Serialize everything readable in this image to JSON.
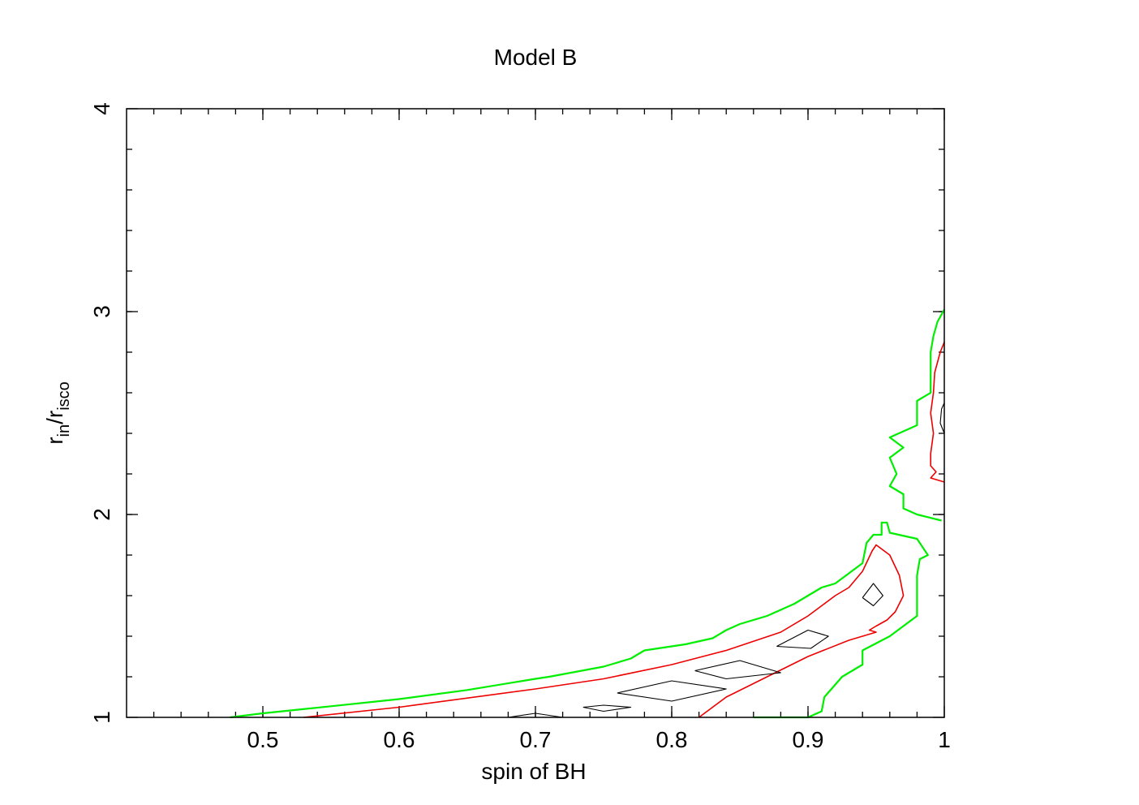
{
  "chart_data": {
    "type": "contour",
    "title": "Model B",
    "xlabel": "spin of BH",
    "ylabel_main": "r",
    "ylabel_sub1": "in",
    "ylabel_slash": "/r",
    "ylabel_sub2": "isco",
    "xlim": [
      0.4,
      1.0
    ],
    "ylim": [
      1,
      4
    ],
    "x_ticks": [
      {
        "value": 0.5,
        "label": "0.5"
      },
      {
        "value": 0.6,
        "label": "0.6"
      },
      {
        "value": 0.7,
        "label": "0.7"
      },
      {
        "value": 0.8,
        "label": "0.8"
      },
      {
        "value": 0.9,
        "label": "0.9"
      },
      {
        "value": 1.0,
        "label": "1"
      }
    ],
    "y_ticks": [
      {
        "value": 1,
        "label": "1"
      },
      {
        "value": 2,
        "label": "2"
      },
      {
        "value": 3,
        "label": "3"
      },
      {
        "value": 4,
        "label": "4"
      }
    ],
    "x_minor_step": 0.02,
    "y_minor_step": 0.2,
    "grid": false,
    "contours": [
      {
        "level": "outer",
        "color": "#00ee00",
        "paths": [
          [
            [
              0.476,
              1.0
            ],
            [
              0.5,
              1.02
            ],
            [
              0.55,
              1.055
            ],
            [
              0.6,
              1.09
            ],
            [
              0.65,
              1.135
            ],
            [
              0.7,
              1.19
            ],
            [
              0.71,
              1.2
            ],
            [
              0.75,
              1.25
            ],
            [
              0.77,
              1.29
            ],
            [
              0.78,
              1.33
            ],
            [
              0.8,
              1.35
            ],
            [
              0.81,
              1.36
            ],
            [
              0.83,
              1.39
            ],
            [
              0.84,
              1.43
            ],
            [
              0.85,
              1.46
            ],
            [
              0.87,
              1.5
            ],
            [
              0.88,
              1.53
            ],
            [
              0.89,
              1.56
            ],
            [
              0.9,
              1.6
            ],
            [
              0.91,
              1.64
            ],
            [
              0.92,
              1.66
            ],
            [
              0.94,
              1.76
            ],
            [
              0.943,
              1.86
            ],
            [
              0.948,
              1.9
            ],
            [
              0.954,
              1.9
            ],
            [
              0.954,
              1.96
            ],
            [
              0.958,
              1.96
            ],
            [
              0.96,
              1.91
            ],
            [
              0.98,
              1.88
            ],
            [
              0.988,
              1.8
            ],
            [
              0.982,
              1.78
            ],
            [
              0.98,
              1.7
            ],
            [
              0.98,
              1.6
            ],
            [
              0.98,
              1.5
            ],
            [
              0.97,
              1.45
            ],
            [
              0.96,
              1.4
            ],
            [
              0.94,
              1.33
            ],
            [
              0.94,
              1.26
            ],
            [
              0.925,
              1.2
            ],
            [
              0.912,
              1.1
            ],
            [
              0.91,
              1.03
            ],
            [
              0.9,
              1.0
            ],
            [
              0.86,
              1.0
            ]
          ],
          [
            [
              0.998,
              1.97
            ],
            [
              0.98,
              2.0
            ],
            [
              0.97,
              2.03
            ],
            [
              0.97,
              2.1
            ],
            [
              0.96,
              2.14
            ],
            [
              0.965,
              2.2
            ],
            [
              0.96,
              2.28
            ],
            [
              0.97,
              2.33
            ],
            [
              0.96,
              2.38
            ],
            [
              0.98,
              2.44
            ],
            [
              0.98,
              2.56
            ],
            [
              0.99,
              2.6
            ],
            [
              0.99,
              2.7
            ],
            [
              0.99,
              2.8
            ],
            [
              0.992,
              2.88
            ],
            [
              0.995,
              2.95
            ],
            [
              1.0,
              3.01
            ]
          ]
        ]
      },
      {
        "level": "middle",
        "color": "#ee0000",
        "paths": [
          [
            [
              0.53,
              1.0
            ],
            [
              0.6,
              1.05
            ],
            [
              0.7,
              1.14
            ],
            [
              0.75,
              1.19
            ],
            [
              0.8,
              1.26
            ],
            [
              0.84,
              1.33
            ],
            [
              0.88,
              1.42
            ],
            [
              0.9,
              1.5
            ],
            [
              0.91,
              1.55
            ],
            [
              0.92,
              1.6
            ],
            [
              0.93,
              1.64
            ],
            [
              0.94,
              1.72
            ],
            [
              0.947,
              1.82
            ],
            [
              0.95,
              1.85
            ],
            [
              0.96,
              1.8
            ],
            [
              0.967,
              1.7
            ],
            [
              0.97,
              1.6
            ],
            [
              0.964,
              1.52
            ],
            [
              0.958,
              1.48
            ],
            [
              0.95,
              1.45
            ],
            [
              0.945,
              1.43
            ],
            [
              0.95,
              1.42
            ],
            [
              0.93,
              1.38
            ],
            [
              0.9,
              1.3
            ],
            [
              0.87,
              1.2
            ],
            [
              0.84,
              1.1
            ],
            [
              0.82,
              1.0
            ]
          ],
          [
            [
              1.0,
              2.16
            ],
            [
              0.99,
              2.18
            ],
            [
              0.994,
              2.21
            ],
            [
              0.99,
              2.24
            ],
            [
              0.99,
              2.3
            ],
            [
              0.992,
              2.4
            ],
            [
              0.99,
              2.5
            ],
            [
              0.992,
              2.6
            ],
            [
              0.993,
              2.7
            ],
            [
              0.997,
              2.8
            ],
            [
              1.0,
              2.85
            ]
          ]
        ]
      },
      {
        "level": "inner",
        "color": "#000000",
        "paths": [
          [
            [
              0.68,
              1.0
            ],
            [
              0.7,
              1.02
            ],
            [
              0.72,
              1.0
            ]
          ],
          [
            [
              0.735,
              1.05
            ],
            [
              0.75,
              1.06
            ],
            [
              0.77,
              1.05
            ],
            [
              0.75,
              1.03
            ],
            [
              0.735,
              1.05
            ]
          ],
          [
            [
              0.76,
              1.12
            ],
            [
              0.8,
              1.18
            ],
            [
              0.84,
              1.14
            ],
            [
              0.8,
              1.08
            ],
            [
              0.76,
              1.12
            ]
          ],
          [
            [
              0.817,
              1.23
            ],
            [
              0.85,
              1.28
            ],
            [
              0.88,
              1.22
            ],
            [
              0.84,
              1.19
            ],
            [
              0.817,
              1.23
            ]
          ],
          [
            [
              0.877,
              1.35
            ],
            [
              0.9,
              1.43
            ],
            [
              0.915,
              1.4
            ],
            [
              0.902,
              1.34
            ],
            [
              0.877,
              1.35
            ]
          ],
          [
            [
              0.94,
              1.59
            ],
            [
              0.948,
              1.66
            ],
            [
              0.955,
              1.6
            ],
            [
              0.948,
              1.55
            ],
            [
              0.94,
              1.59
            ]
          ],
          [
            [
              1.0,
              2.4
            ],
            [
              0.997,
              2.45
            ],
            [
              0.998,
              2.52
            ],
            [
              1.0,
              2.55
            ]
          ]
        ]
      }
    ]
  }
}
